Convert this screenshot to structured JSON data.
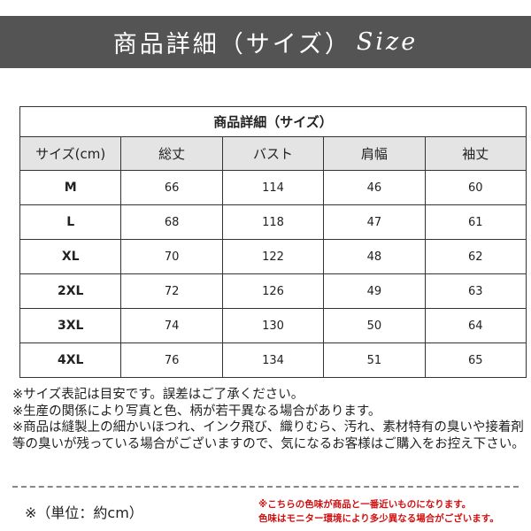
{
  "banner": {
    "title": "商品詳細（サイズ）",
    "title_en": "Size"
  },
  "table": {
    "title": "商品詳細（サイズ）",
    "headers": [
      "サイズ(cm)",
      "総丈",
      "バスト",
      "肩幅",
      "袖丈"
    ],
    "rows": [
      [
        "M",
        "66",
        "114",
        "46",
        "60"
      ],
      [
        "L",
        "68",
        "118",
        "47",
        "61"
      ],
      [
        "XL",
        "70",
        "122",
        "48",
        "62"
      ],
      [
        "2XL",
        "72",
        "126",
        "49",
        "63"
      ],
      [
        "3XL",
        "74",
        "130",
        "50",
        "64"
      ],
      [
        "4XL",
        "76",
        "134",
        "51",
        "65"
      ]
    ]
  },
  "notes": [
    "※サイズ表記は目安です。誤差はご了承ください。",
    "※生産の関係により写真と色、柄が若干異なる場合があります。",
    "※商品は縫製上の細かいほつれ、インク飛び、織りむら、汚れ、素材特有の臭いや接着剤等の臭いが残っている場合がございますので、気になるお客様はご購入をお控え下さい。"
  ],
  "unit": "※（単位：約cm）",
  "color_notes": [
    "※こちらの色味が商品と一番近いものになります。",
    "色味はモニター環境により多少異なる場合がございます。"
  ],
  "colors": {
    "banner": "#545454",
    "header_bg": "#e4e4e4",
    "warning": "#d01010"
  }
}
